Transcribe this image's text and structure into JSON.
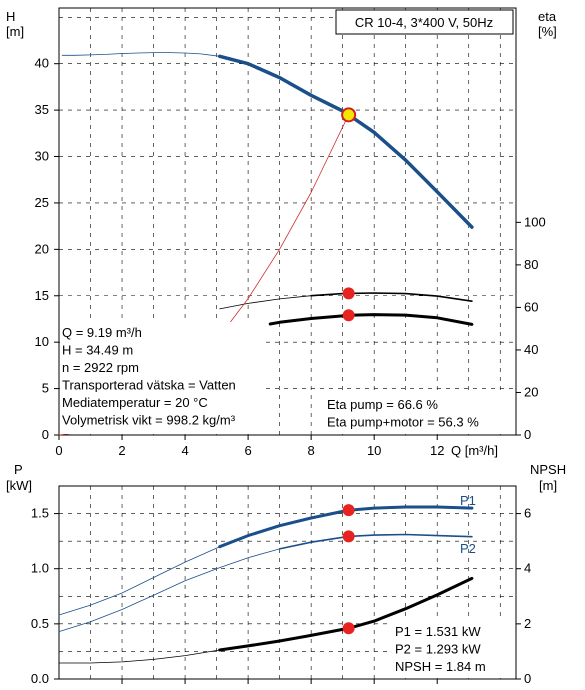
{
  "chart_data": [
    {
      "type": "line",
      "title": "CR 10-4, 3*400 V, 50Hz",
      "xlabel": "Q [m³/h]",
      "ylabel_left": [
        "H",
        "[m]"
      ],
      "ylabel_right": [
        "eta",
        "[%]"
      ],
      "xlim": [
        0,
        14.5
      ],
      "xticks": [
        0,
        2,
        4,
        6,
        8,
        10,
        12
      ],
      "ylim_left": [
        0,
        46
      ],
      "yticks_left": [
        0,
        5,
        10,
        15,
        20,
        25,
        30,
        35,
        40
      ],
      "ylim_right": [
        0,
        100
      ],
      "yticks_right": [
        0,
        20,
        40,
        60,
        80,
        100
      ],
      "grid": true,
      "series": [
        {
          "key": "head",
          "axis": "left",
          "color": "#1a4f8b",
          "thin_x": [
            0.1,
            0.5,
            1,
            1.5,
            2,
            2.5,
            3,
            3.5,
            4,
            4.5,
            5.1
          ],
          "thin_y": [
            40.9,
            40.9,
            40.95,
            41.0,
            41.1,
            41.15,
            41.2,
            41.2,
            41.15,
            41.05,
            40.8
          ],
          "thick_x": [
            5.1,
            6,
            7,
            8,
            9,
            9.19,
            10,
            11,
            12,
            13.1
          ],
          "thick_y": [
            40.8,
            40.0,
            38.5,
            36.6,
            34.9,
            34.49,
            32.6,
            29.6,
            26.2,
            22.4
          ]
        },
        {
          "key": "eta_pump",
          "axis": "right",
          "color": "#000000",
          "thin_x": [
            5.1,
            6,
            7,
            8
          ],
          "thin_y": [
            59.3,
            61.9,
            64.0,
            65.5
          ],
          "thick_x": [
            8,
            9,
            9.19,
            10,
            11,
            12,
            13.1
          ],
          "thick_y": [
            65.5,
            66.5,
            66.6,
            66.8,
            66.5,
            65.3,
            62.9
          ]
        },
        {
          "key": "eta_pump_motor",
          "axis": "right",
          "color": "#000000",
          "thin_x": [],
          "thin_y": [],
          "thick_x": [
            6.7,
            7,
            8,
            9,
            9.19,
            10,
            11,
            12,
            13.1
          ],
          "thick_y": [
            52.2,
            53.0,
            54.8,
            56.0,
            56.3,
            56.6,
            56.4,
            55.1,
            52.0
          ]
        },
        {
          "key": "system_curve",
          "axis": "left",
          "color": "#d03030",
          "thin_x": [
            0,
            1,
            2,
            3,
            4,
            5,
            6,
            7,
            8,
            9.19
          ],
          "thin_y": [
            0,
            0.41,
            1.63,
            3.67,
            6.53,
            10.2,
            14.69,
            20.0,
            26.12,
            34.49
          ],
          "thick_x": [],
          "thick_y": []
        }
      ],
      "operating_points": [
        {
          "x": 9.19,
          "y": 34.49,
          "axis": "left",
          "style": "yellow"
        },
        {
          "x": 9.19,
          "y": 66.6,
          "axis": "right",
          "style": "red"
        },
        {
          "x": 9.19,
          "y": 56.3,
          "axis": "right",
          "style": "red"
        }
      ],
      "info_lines": [
        "Q = 9.19 m³/h",
        "H = 34.49 m",
        "n = 2922 rpm",
        "Transporterad vätska = Vatten",
        "Mediatemperatur = 20 °C",
        "Volymetrisk vikt = 998.2 kg/m³"
      ],
      "eta_info": [
        "Eta pump = 66.6 %",
        "Eta pump+motor = 56.3 %"
      ]
    },
    {
      "type": "line",
      "title": "",
      "xlim": [
        0,
        14.5
      ],
      "ylabel_left": [
        "P",
        "[kW]"
      ],
      "ylabel_right": [
        "NPSH",
        "[m]"
      ],
      "ylim_left": [
        0,
        1.75
      ],
      "yticks_left": [
        0.0,
        0.5,
        1.0,
        1.5
      ],
      "ylim_right": [
        0,
        7
      ],
      "yticks_right": [
        0,
        2,
        4,
        6
      ],
      "grid": true,
      "series": [
        {
          "key": "p1",
          "name": "P1",
          "axis": "left",
          "color": "#1a4f8b",
          "thin_x": [
            0,
            1,
            2,
            3,
            4,
            5.1
          ],
          "thin_y": [
            0.58,
            0.67,
            0.78,
            0.92,
            1.06,
            1.2
          ],
          "thick_x": [
            5.1,
            6,
            7,
            8,
            9,
            9.19,
            10,
            11,
            12,
            13.1
          ],
          "thick_y": [
            1.2,
            1.3,
            1.39,
            1.46,
            1.52,
            1.531,
            1.55,
            1.56,
            1.56,
            1.55
          ]
        },
        {
          "key": "p2",
          "name": "P2",
          "axis": "left",
          "color": "#1a4f8b",
          "thin_x": [
            0,
            1,
            2,
            3,
            4,
            5.1,
            6,
            7
          ],
          "thin_y": [
            0.43,
            0.52,
            0.63,
            0.76,
            0.89,
            1.01,
            1.1,
            1.18
          ],
          "thick_x": [],
          "thick_y": [],
          "tail_x": [
            7,
            8,
            9,
            9.19,
            10,
            11,
            12,
            13.1
          ],
          "tail_y": [
            1.18,
            1.24,
            1.285,
            1.293,
            1.305,
            1.31,
            1.3,
            1.29
          ]
        },
        {
          "key": "npsh",
          "axis": "right",
          "color": "#000000",
          "thin_x": [
            0,
            1,
            2,
            3,
            4,
            5.1
          ],
          "thin_y": [
            0.58,
            0.58,
            0.62,
            0.71,
            0.85,
            1.05
          ],
          "thick_x": [
            5.1,
            6,
            7,
            8,
            9,
            9.19,
            10,
            11,
            12,
            13.1
          ],
          "thick_y": [
            1.05,
            1.2,
            1.38,
            1.58,
            1.8,
            1.84,
            2.1,
            2.55,
            3.05,
            3.65
          ]
        }
      ],
      "operating_points": [
        {
          "x": 9.19,
          "y": 1.531,
          "axis": "left",
          "style": "red"
        },
        {
          "x": 9.19,
          "y": 1.293,
          "axis": "left",
          "style": "red"
        },
        {
          "x": 9.19,
          "y": 1.84,
          "axis": "right",
          "style": "red"
        }
      ],
      "info_lines": [
        "P1 = 1.531 kW",
        "P2 = 1.293 kW",
        "NPSH = 1.84 m"
      ]
    }
  ]
}
